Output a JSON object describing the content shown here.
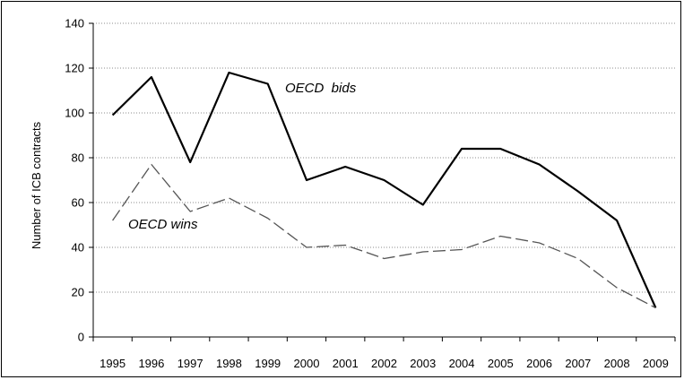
{
  "chart_data": {
    "type": "line",
    "title": "",
    "xlabel": "",
    "ylabel": "Number of ICB contracts",
    "ylim": [
      0,
      140
    ],
    "yticks": [
      0,
      20,
      40,
      60,
      80,
      100,
      120,
      140
    ],
    "grid": "horizontal dotted",
    "categories": [
      "1995",
      "1996",
      "1997",
      "1998",
      "1999",
      "2000",
      "2001",
      "2002",
      "2003",
      "2004",
      "2005",
      "2006",
      "2007",
      "2008",
      "2009"
    ],
    "series": [
      {
        "name": "OECD bids",
        "style": "solid",
        "color": "#000000",
        "values": [
          99,
          116,
          78,
          118,
          113,
          70,
          76,
          70,
          59,
          84,
          84,
          77,
          65,
          52,
          13
        ]
      },
      {
        "name": "OECD wins",
        "style": "dashed",
        "color": "#555555",
        "values": [
          52,
          77,
          56,
          62,
          53,
          40,
          41,
          35,
          38,
          39,
          45,
          42,
          35,
          22,
          13
        ]
      }
    ],
    "annotations": [
      {
        "text": "OECD  bids",
        "series": 0
      },
      {
        "text": "OECD wins",
        "series": 1
      }
    ]
  }
}
